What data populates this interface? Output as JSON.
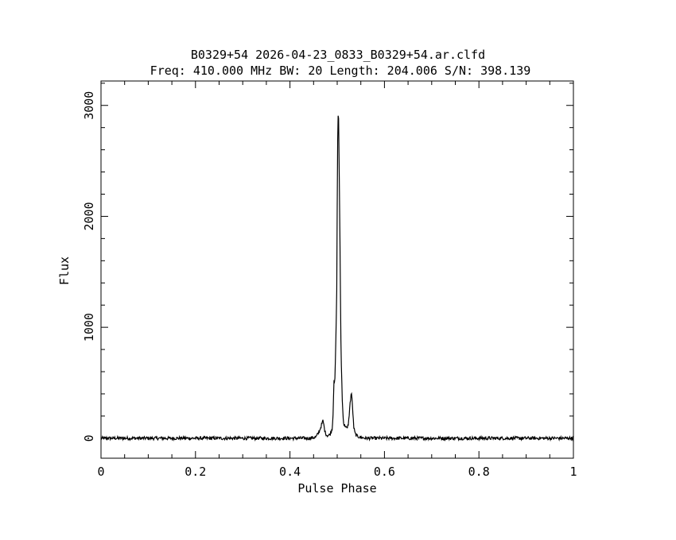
{
  "chart_data": {
    "type": "line",
    "title": "B0329+54 2026-04-23_0833_B0329+54.ar.clfd",
    "subtitle": "Freq: 410.000 MHz BW: 20 Length: 204.006 S/N: 398.139",
    "xlabel": "Pulse Phase",
    "ylabel": "Flux",
    "xlim": [
      0,
      1
    ],
    "ylim": [
      -180,
      3220
    ],
    "x_ticks": [
      0,
      0.2,
      0.4,
      0.6,
      0.8,
      1
    ],
    "x_tick_labels": [
      "0",
      "0.2",
      "0.4",
      "0.6",
      "0.8",
      "1"
    ],
    "y_ticks": [
      0,
      1000,
      2000,
      3000
    ],
    "y_tick_labels": [
      "0",
      "1000",
      "2000",
      "3000"
    ],
    "grid": false,
    "series": [
      {
        "x": [
          0.0,
          0.44,
          0.455,
          0.462,
          0.466,
          0.47,
          0.474,
          0.478,
          0.484,
          0.489,
          0.491,
          0.493,
          0.495,
          0.497,
          0.499,
          0.5,
          0.501,
          0.5025,
          0.504,
          0.506,
          0.508,
          0.511,
          0.514,
          0.518,
          0.521,
          0.524,
          0.527,
          0.53,
          0.5325,
          0.535,
          0.538,
          0.542,
          0.548,
          0.56,
          1.0
        ],
        "y": [
          0,
          0,
          10,
          60,
          110,
          160,
          60,
          25,
          30,
          80,
          180,
          530,
          500,
          850,
          1300,
          2100,
          2680,
          3040,
          2500,
          1700,
          800,
          300,
          120,
          110,
          80,
          140,
          300,
          420,
          280,
          100,
          40,
          20,
          10,
          0,
          0
        ]
      }
    ]
  }
}
